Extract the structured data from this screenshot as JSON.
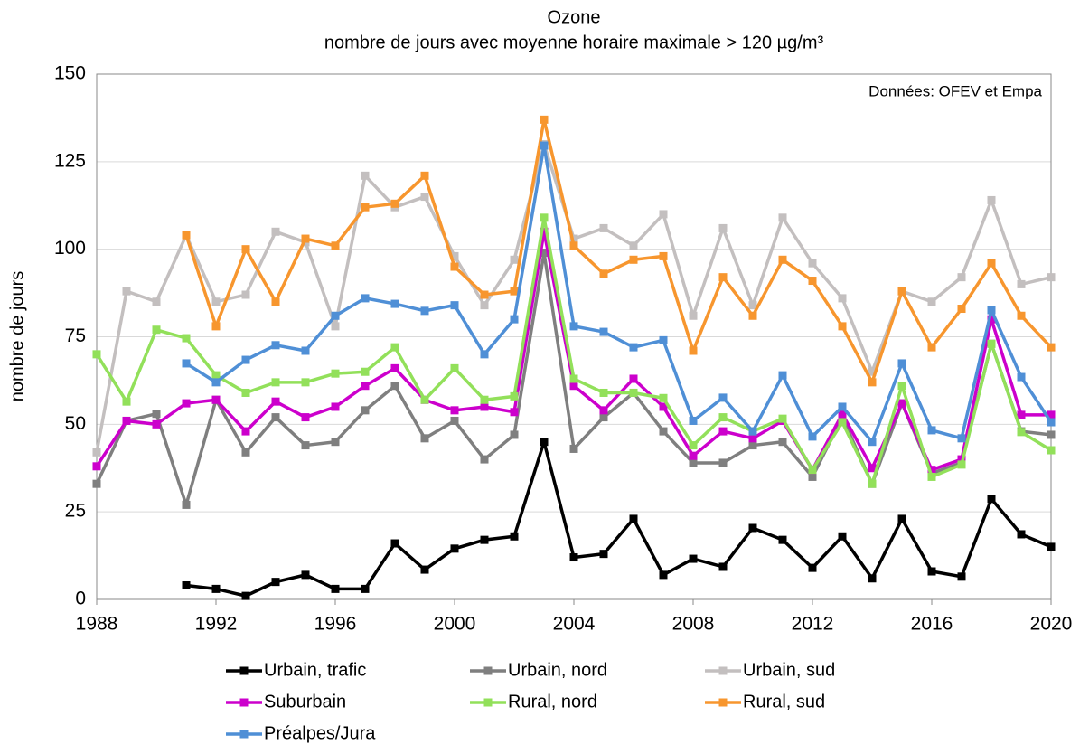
{
  "chart_data": {
    "type": "line",
    "title": "Ozone",
    "subtitle": "nombre de jours avec moyenne horaire maximale > 120 µg/m³",
    "y_label": "nombre de jours",
    "annotation": "Données: OFEV et Empa",
    "x": [
      1988,
      1989,
      1990,
      1991,
      1992,
      1993,
      1994,
      1995,
      1996,
      1997,
      1998,
      1999,
      2000,
      2001,
      2002,
      2003,
      2004,
      2005,
      2006,
      2007,
      2008,
      2009,
      2010,
      2011,
      2012,
      2013,
      2014,
      2015,
      2016,
      2017,
      2018,
      2019,
      2020
    ],
    "xlim": [
      1988,
      2020
    ],
    "xticks": [
      1988,
      1992,
      1996,
      2000,
      2004,
      2008,
      2012,
      2016,
      2020
    ],
    "ylim": [
      0,
      150
    ],
    "yticks": [
      0,
      25,
      50,
      75,
      100,
      125,
      150
    ],
    "grid": true,
    "series": [
      {
        "name": "Urbain, trafic",
        "color": "#000000",
        "values": [
          null,
          null,
          null,
          4,
          3,
          1,
          5,
          7,
          3,
          3,
          16,
          8.5,
          14.5,
          17,
          18,
          45,
          12,
          13,
          23,
          7,
          11.6,
          9.3,
          20.4,
          17,
          9,
          18,
          6,
          23,
          8,
          6.5,
          28.7,
          18.6,
          15
        ]
      },
      {
        "name": "Urbain, nord",
        "color": "#7f7f7f",
        "values": [
          33,
          51,
          53,
          27,
          57,
          42,
          52,
          44,
          45,
          54,
          61,
          46,
          51,
          40,
          47,
          99,
          43,
          52,
          59,
          48,
          39,
          39,
          44,
          45,
          35,
          52,
          33,
          56,
          36,
          39,
          73,
          48,
          47
        ]
      },
      {
        "name": "Urbain, sud",
        "color": "#c3bfbf",
        "values": [
          42,
          88,
          85,
          104,
          85,
          87,
          105,
          102,
          78,
          121,
          112,
          115,
          98,
          84,
          97,
          130,
          103,
          106,
          101,
          110,
          81,
          106,
          84,
          109,
          96,
          86,
          65,
          88,
          85,
          92,
          114,
          90,
          92
        ]
      },
      {
        "name": "Suburbain",
        "color": "#cc00cc",
        "values": [
          38,
          51,
          50,
          56,
          57,
          48,
          56.5,
          52,
          55,
          61,
          66,
          57,
          54,
          55,
          53.5,
          105,
          61,
          54,
          63,
          55,
          41,
          48,
          46,
          51,
          37,
          53,
          37.5,
          56,
          37,
          40,
          80,
          52.7,
          52.7
        ]
      },
      {
        "name": "Rural, nord",
        "color": "#92e05a",
        "values": [
          70,
          56.5,
          77,
          74.6,
          64,
          59,
          62,
          62,
          64.5,
          65,
          72,
          57,
          66,
          57,
          58,
          109,
          63,
          59,
          59,
          57.5,
          44,
          52,
          48,
          51.6,
          37,
          50.6,
          33,
          61,
          35,
          38.5,
          73,
          47.8,
          42.6
        ]
      },
      {
        "name": "Rural, sud",
        "color": "#f7962e",
        "values": [
          null,
          null,
          null,
          104,
          78,
          100,
          85,
          103,
          101,
          112,
          113,
          121,
          95,
          87,
          88,
          137,
          101,
          93,
          97,
          98,
          71,
          92,
          81,
          97,
          91,
          78,
          62,
          88,
          72,
          83,
          96,
          81,
          72
        ]
      },
      {
        "name": "Préalpes/Jura",
        "color": "#4f8fd6",
        "values": [
          null,
          null,
          null,
          67.4,
          62,
          68.4,
          72.6,
          71,
          81,
          86,
          84.4,
          82.4,
          84,
          70,
          80,
          129.6,
          78,
          76.4,
          72,
          74,
          51,
          57.6,
          48,
          64,
          46.5,
          55,
          45,
          67.4,
          48.3,
          46,
          82.6,
          63.5,
          50.6
        ]
      }
    ]
  }
}
